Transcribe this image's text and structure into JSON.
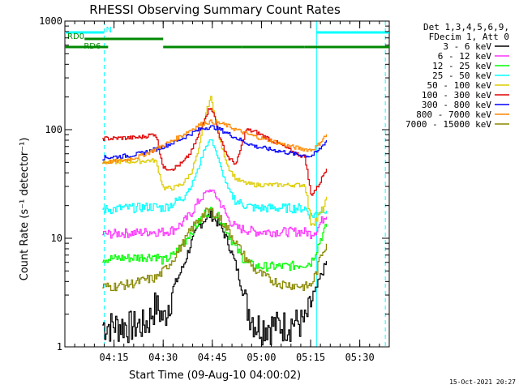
{
  "chart_data": {
    "type": "line",
    "title": "RHESSI Observing Summary Count Rates",
    "xlabel": "Start Time (09-Aug-10 04:00:02)",
    "ylabel": "Count Rate (s⁻¹ detector⁻¹)",
    "y_scale": "log",
    "ylim": [
      1,
      1000
    ],
    "xlim": [
      4.0,
      5.65
    ],
    "y_ticks": [
      {
        "value": 1,
        "label": "1"
      },
      {
        "value": 10,
        "label": "10"
      },
      {
        "value": 100,
        "label": "100"
      },
      {
        "value": 1000,
        "label": "1000"
      }
    ],
    "x_ticks": [
      {
        "value": 4.25,
        "label": "04:15"
      },
      {
        "value": 4.5,
        "label": "04:30"
      },
      {
        "value": 4.75,
        "label": "04:45"
      },
      {
        "value": 5.0,
        "label": "05:00"
      },
      {
        "value": 5.25,
        "label": "05:15"
      },
      {
        "value": 5.5,
        "label": "05:30"
      }
    ],
    "x_minor_step": 0.05,
    "legend": {
      "position": "right",
      "header": [
        "Det 1,3,4,5,6,9,",
        "FDecim 1, Att 0"
      ]
    },
    "series": [
      {
        "name": "3 - 6 keV",
        "color": "#000000",
        "x": [
          4.19,
          4.24,
          4.29,
          4.33,
          4.38,
          4.42,
          4.46,
          4.5,
          4.55,
          4.6,
          4.64,
          4.68,
          4.71,
          4.74,
          4.76,
          4.79,
          4.83,
          4.87,
          4.92,
          4.97,
          5.04,
          5.1,
          5.16,
          5.22,
          5.25,
          5.28,
          5.3,
          5.33
        ],
        "y": [
          1.6,
          1.6,
          1.6,
          1.6,
          1.6,
          1.7,
          2.5,
          1.8,
          3.5,
          5.5,
          9,
          13,
          15,
          16.5,
          15,
          13,
          9,
          5.5,
          2.5,
          1.6,
          1.6,
          1.6,
          1.7,
          1.7,
          2.5,
          3.5,
          4.5,
          6
        ]
      },
      {
        "name": "6 - 12 keV",
        "color": "#ff33ff",
        "x": [
          4.19,
          4.24,
          4.29,
          4.33,
          4.38,
          4.42,
          4.46,
          4.5,
          4.55,
          4.6,
          4.64,
          4.68,
          4.71,
          4.74,
          4.76,
          4.79,
          4.83,
          4.87,
          4.92,
          4.97,
          5.04,
          5.1,
          5.16,
          5.22,
          5.25,
          5.28,
          5.3,
          5.33
        ],
        "y": [
          11,
          11,
          11.2,
          11.2,
          11.3,
          11.5,
          11.5,
          11.5,
          12,
          14,
          17,
          22,
          26,
          28,
          26,
          21,
          15,
          12.5,
          12,
          11.5,
          11.5,
          11.5,
          11.5,
          11.5,
          11,
          12,
          14,
          17
        ]
      },
      {
        "name": "12 - 25 keV",
        "color": "#00ff00",
        "x": [
          4.19,
          4.24,
          4.29,
          4.33,
          4.38,
          4.42,
          4.46,
          4.5,
          4.55,
          4.6,
          4.64,
          4.68,
          4.71,
          4.74,
          4.76,
          4.79,
          4.83,
          4.87,
          4.92,
          4.97,
          5.04,
          5.1,
          5.16,
          5.22,
          5.25,
          5.28,
          5.3,
          5.33
        ],
        "y": [
          6.5,
          6.5,
          6.6,
          6.6,
          6.7,
          6.8,
          6.9,
          6.2,
          7,
          9,
          11.5,
          14,
          17,
          18,
          17,
          15,
          11,
          8,
          6,
          5.5,
          5.5,
          5.5,
          5.6,
          5.8,
          6,
          8,
          10,
          13
        ]
      },
      {
        "name": "25 - 50 keV",
        "color": "#00ffff",
        "x": [
          4.19,
          4.24,
          4.29,
          4.33,
          4.38,
          4.42,
          4.46,
          4.5,
          4.55,
          4.6,
          4.64,
          4.68,
          4.71,
          4.74,
          4.76,
          4.79,
          4.83,
          4.87,
          4.92,
          4.97,
          5.04,
          5.1,
          5.16,
          5.22,
          5.25,
          5.28,
          5.3,
          5.33
        ],
        "y": [
          18.5,
          18.5,
          19,
          19,
          19.2,
          19.5,
          19.5,
          19,
          21,
          24,
          30,
          45,
          68,
          82,
          70,
          45,
          28,
          22,
          20,
          19,
          19,
          19,
          19,
          19,
          16,
          17,
          18,
          19
        ]
      },
      {
        "name": "50 - 100 keV",
        "color": "#ddcc00",
        "x": [
          4.19,
          4.24,
          4.29,
          4.33,
          4.38,
          4.42,
          4.46,
          4.5,
          4.55,
          4.6,
          4.64,
          4.68,
          4.71,
          4.74,
          4.76,
          4.79,
          4.83,
          4.87,
          4.92,
          4.97,
          5.04,
          5.1,
          5.16,
          5.22,
          5.25,
          5.28,
          5.3,
          5.33
        ],
        "y": [
          50,
          50,
          51,
          51,
          51,
          52,
          52,
          29,
          29,
          32,
          40,
          65,
          130,
          200,
          140,
          75,
          45,
          35,
          32,
          31,
          31,
          31,
          31,
          31,
          14,
          15,
          17,
          22
        ]
      },
      {
        "name": "100 - 300 keV",
        "color": "#e00000",
        "x": [
          4.19,
          4.24,
          4.29,
          4.33,
          4.38,
          4.42,
          4.46,
          4.5,
          4.55,
          4.6,
          4.64,
          4.68,
          4.71,
          4.74,
          4.76,
          4.79,
          4.83,
          4.87,
          4.92,
          4.97,
          5.04,
          5.1,
          5.16,
          5.22,
          5.25,
          5.28,
          5.3,
          5.33
        ],
        "y": [
          83,
          83,
          84,
          84,
          85,
          88,
          92,
          44,
          44,
          50,
          62,
          90,
          130,
          165,
          130,
          80,
          55,
          48,
          100,
          95,
          82,
          72,
          62,
          56,
          25,
          29,
          34,
          45
        ]
      },
      {
        "name": "300 - 800 keV",
        "color": "#0000ff",
        "x": [
          4.19,
          4.24,
          4.29,
          4.33,
          4.38,
          4.42,
          4.46,
          4.5,
          4.55,
          4.6,
          4.64,
          4.68,
          4.71,
          4.74,
          4.76,
          4.79,
          4.83,
          4.87,
          4.92,
          4.97,
          5.04,
          5.1,
          5.16,
          5.22,
          5.25,
          5.28,
          5.3,
          5.33
        ],
        "y": [
          55,
          56,
          57,
          58,
          60,
          63,
          66,
          70,
          76,
          84,
          92,
          100,
          104,
          106,
          105,
          100,
          92,
          84,
          76,
          70,
          66,
          63,
          60,
          58,
          57,
          62,
          68,
          80
        ]
      },
      {
        "name": "800 - 7000 keV",
        "color": "#ff8800",
        "x": [
          4.19,
          4.24,
          4.29,
          4.33,
          4.38,
          4.42,
          4.46,
          4.5,
          4.55,
          4.6,
          4.64,
          4.68,
          4.71,
          4.74,
          4.76,
          4.79,
          4.83,
          4.87,
          4.92,
          4.97,
          5.04,
          5.1,
          5.16,
          5.22,
          5.25,
          5.28,
          5.3,
          5.33
        ],
        "y": [
          50,
          51,
          52,
          54,
          57,
          61,
          66,
          72,
          80,
          90,
          100,
          110,
          116,
          118,
          117,
          114,
          108,
          100,
          92,
          86,
          80,
          74,
          69,
          66,
          65,
          70,
          78,
          90
        ]
      },
      {
        "name": "7000 - 15000 keV",
        "color": "#888800",
        "x": [
          4.19,
          4.24,
          4.29,
          4.33,
          4.38,
          4.42,
          4.46,
          4.5,
          4.55,
          4.6,
          4.64,
          4.68,
          4.71,
          4.74,
          4.76,
          4.79,
          4.83,
          4.87,
          4.92,
          4.97,
          5.04,
          5.1,
          5.16,
          5.22,
          5.25,
          5.28,
          5.3,
          5.33
        ],
        "y": [
          3.6,
          3.6,
          3.7,
          3.8,
          4,
          4.2,
          4.3,
          5,
          6.5,
          9,
          12,
          15,
          17,
          18,
          17,
          15,
          12,
          9,
          6.5,
          5,
          4.2,
          3.8,
          3.7,
          3.6,
          3.7,
          5,
          7,
          9
        ]
      }
    ],
    "flags": [
      {
        "label": "N",
        "color": "#00ffff",
        "start": 4.0,
        "end": 4.2
      },
      {
        "label": "",
        "color": "#00ffff",
        "start": 5.28,
        "end": 5.65
      },
      {
        "label": "RD0",
        "color": "#008800",
        "start": 4.1,
        "end": 4.5
      },
      {
        "label": "RD6",
        "color": "#008800",
        "start": 4.0,
        "end": 4.22
      },
      {
        "label": "",
        "color": "#008800",
        "start": 4.5,
        "end": 4.9
      },
      {
        "label": "",
        "color": "#008800",
        "start": 4.9,
        "end": 5.22
      },
      {
        "label": "",
        "color": "#008800",
        "start": 5.22,
        "end": 5.65
      }
    ],
    "markers": [
      {
        "x": 4.0,
        "color": "#00ffff",
        "style": "solid"
      },
      {
        "x": 4.2,
        "color": "#00ffff",
        "style": "dashed"
      },
      {
        "x": 5.28,
        "color": "#00ffff",
        "style": "solid"
      },
      {
        "x": 5.63,
        "color": "#00ffff",
        "style": "dashed"
      }
    ],
    "gaps": [
      [
        4.04,
        4.19
      ],
      [
        5.34,
        5.65
      ]
    ],
    "footer": "15-Oct-2021 20:27"
  }
}
